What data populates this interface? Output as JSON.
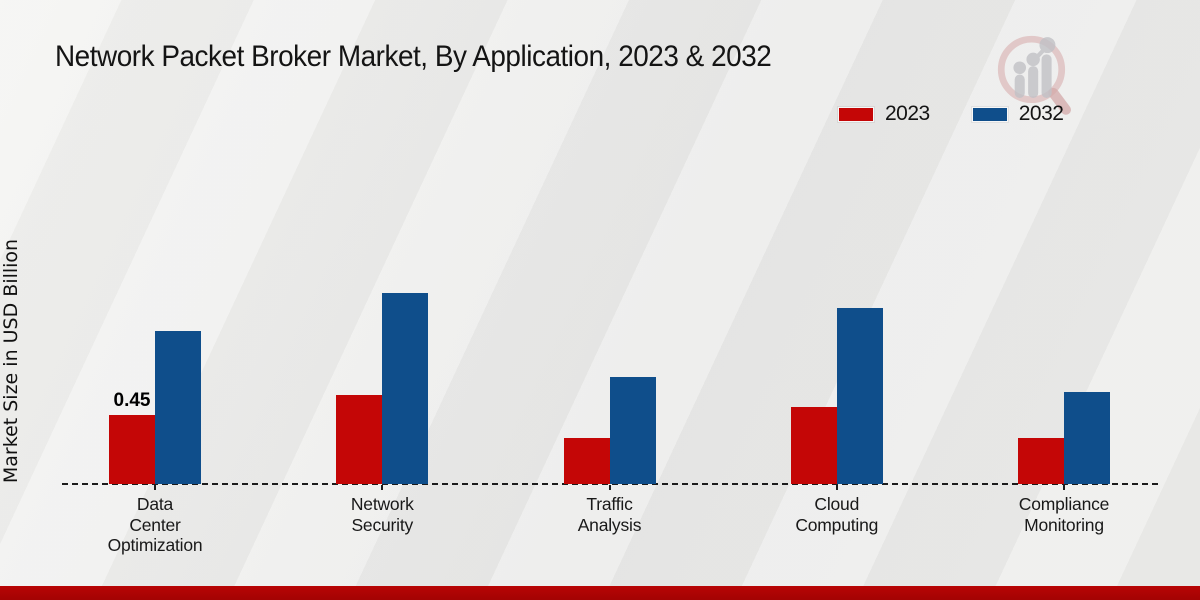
{
  "chart_data": {
    "type": "bar",
    "title": "Network Packet Broker Market, By Application, 2023 & 2032",
    "ylabel": "Market Size in USD Billion",
    "xlabel": "",
    "categories": [
      "Data Center Optimization",
      "Network Security",
      "Traffic Analysis",
      "Cloud Computing",
      "Compliance Monitoring"
    ],
    "category_lines": [
      [
        "Data",
        "Center",
        "Optimization"
      ],
      [
        "Network",
        "Security"
      ],
      [
        "Traffic",
        "Analysis"
      ],
      [
        "Cloud",
        "Computing"
      ],
      [
        "Compliance",
        "Monitoring"
      ]
    ],
    "series": [
      {
        "name": "2023",
        "color": "#c40606",
        "values": [
          0.45,
          0.58,
          0.3,
          0.5,
          0.3
        ]
      },
      {
        "name": "2032",
        "color": "#0f4e8b",
        "values": [
          1.0,
          1.25,
          0.7,
          1.15,
          0.6
        ]
      }
    ],
    "bar_labels": [
      {
        "category_index": 0,
        "series_index": 0,
        "text": "0.45"
      }
    ],
    "ylim": [
      0,
      1.4
    ],
    "grid": "off",
    "baseline_style": "dashed",
    "legend_position": "top-right"
  },
  "icons": {
    "watermark_icon": "magnifier-bar-chart-logo"
  },
  "colors": {
    "footer_bar": "#b80404",
    "footer_bar_dark": "#a30303",
    "text": "#1a1a1a",
    "watermark_ring": "#d9b3b3",
    "watermark_gray": "#b9b9bf"
  }
}
